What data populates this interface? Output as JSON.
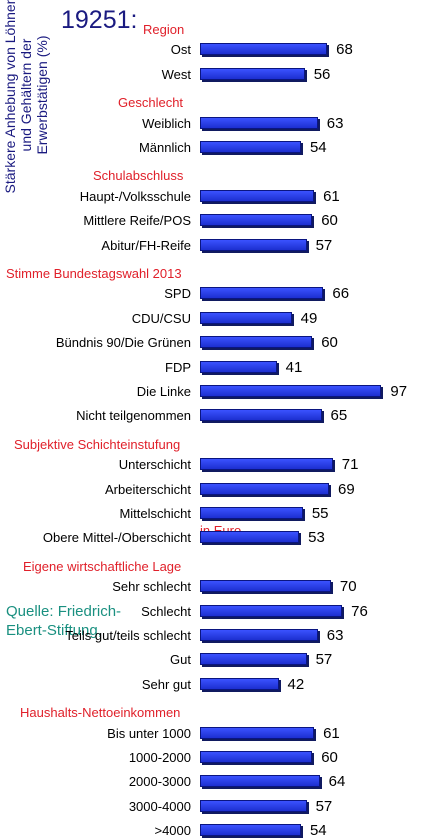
{
  "title": "19251:",
  "ylabel": "Stärkere Anhebung von Löhnen und Gehältern der Erwerbstätigen (%)",
  "source": "Quelle: Friedrich-Ebert-Stiftung,",
  "unit_note": "in Euro",
  "colors": {
    "bar": "#2038e8",
    "group_title": "#e0202a",
    "title": "#1a1a80"
  },
  "chart_data": {
    "type": "bar",
    "orientation": "horizontal",
    "title": "19251:",
    "ylabel": "Stärkere Anhebung von Löhnen und Gehältern der Erwerbstätigen (%)",
    "xlim": [
      0,
      100
    ],
    "grid": false,
    "groups": [
      {
        "title": "Region",
        "items": [
          {
            "label": "Ost",
            "value": 68
          },
          {
            "label": "West",
            "value": 56
          }
        ]
      },
      {
        "title": "Geschlecht",
        "items": [
          {
            "label": "Weiblich",
            "value": 63
          },
          {
            "label": "Männlich",
            "value": 54
          }
        ]
      },
      {
        "title": "Schulabschluss",
        "items": [
          {
            "label": "Haupt-/Volksschule",
            "value": 61
          },
          {
            "label": "Mittlere Reife/POS",
            "value": 60
          },
          {
            "label": "Abitur/FH-Reife",
            "value": 57
          }
        ]
      },
      {
        "title": "Stimme  Bundestagswahl 2013",
        "items": [
          {
            "label": "SPD",
            "value": 66
          },
          {
            "label": "CDU/CSU",
            "value": 49
          },
          {
            "label": "Bündnis 90/Die Grünen",
            "value": 60
          },
          {
            "label": "FDP",
            "value": 41
          },
          {
            "label": "Die Linke",
            "value": 97
          },
          {
            "label": "Nicht teilgenommen",
            "value": 65
          }
        ]
      },
      {
        "title": "Subjektive Schichteinstufung",
        "items": [
          {
            "label": "Unterschicht",
            "value": 71
          },
          {
            "label": "Arbeiterschicht",
            "value": 69
          },
          {
            "label": "Mittelschicht",
            "value": 55
          },
          {
            "label": "Obere Mittel-/Oberschicht",
            "value": 53
          }
        ]
      },
      {
        "title": "Eigene wirtschaftliche Lage",
        "items": [
          {
            "label": "Sehr schlecht",
            "value": 70
          },
          {
            "label": "Schlecht",
            "value": 76
          },
          {
            "label": "Teils gut/teils schlecht",
            "value": 63
          },
          {
            "label": "Gut",
            "value": 57
          },
          {
            "label": "Sehr gut",
            "value": 42
          }
        ]
      },
      {
        "title": "Haushalts-Nettoeinkommen",
        "items": [
          {
            "label": "Bis unter 1000",
            "value": 61
          },
          {
            "label": "1000-2000",
            "value": 60
          },
          {
            "label": "2000-3000",
            "value": 64
          },
          {
            "label": "3000-4000",
            "value": 57
          },
          {
            "label": ">4000",
            "value": 54
          }
        ]
      }
    ]
  }
}
